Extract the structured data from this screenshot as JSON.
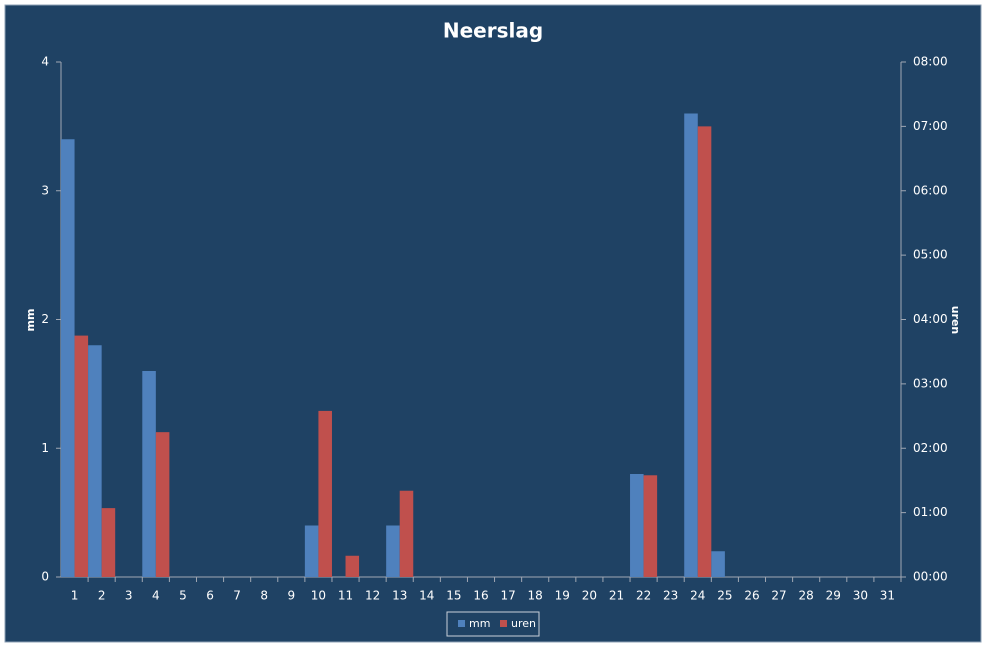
{
  "chart_data": {
    "type": "bar",
    "title": "Neerslag",
    "ylabel": "mm",
    "y2label": "uren",
    "categories": [
      "1",
      "2",
      "3",
      "4",
      "5",
      "6",
      "7",
      "8",
      "9",
      "10",
      "11",
      "12",
      "13",
      "14",
      "15",
      "16",
      "17",
      "18",
      "19",
      "20",
      "21",
      "22",
      "23",
      "24",
      "25",
      "26",
      "27",
      "28",
      "29",
      "30",
      "31"
    ],
    "series": [
      {
        "name": "mm",
        "color": "#4f81bd",
        "values": [
          3.4,
          1.8,
          0,
          1.6,
          0,
          0,
          0,
          0,
          0,
          0.4,
          0,
          0,
          0.4,
          0,
          0,
          0,
          0,
          0,
          0,
          0,
          0,
          0.8,
          0,
          3.6,
          0.2,
          0,
          0,
          0,
          0,
          0,
          0
        ]
      },
      {
        "name": "uren",
        "color": "#c0504d",
        "axis": "y2",
        "values": [
          3.75,
          1.07,
          0,
          2.25,
          0,
          0,
          0,
          0,
          0,
          2.58,
          0.33,
          0,
          1.34,
          0,
          0,
          0,
          0,
          0,
          0,
          0,
          0,
          1.58,
          0,
          7.0,
          0,
          0,
          0,
          0,
          0,
          0,
          0
        ]
      }
    ],
    "ylim": [
      0,
      4
    ],
    "yticks": [
      0,
      1,
      2,
      3,
      4
    ],
    "y2lim": [
      0,
      8
    ],
    "y2ticks": [
      {
        "value": 0,
        "label": "00:00"
      },
      {
        "value": 1,
        "label": "01:00"
      },
      {
        "value": 2,
        "label": "02:00"
      },
      {
        "value": 3,
        "label": "03:00"
      },
      {
        "value": 4,
        "label": "04:00"
      },
      {
        "value": 5,
        "label": "05:00"
      },
      {
        "value": 6,
        "label": "06:00"
      },
      {
        "value": 7,
        "label": "07:00"
      },
      {
        "value": 8,
        "label": "08:00"
      }
    ],
    "grid": false,
    "legend": "bottom"
  }
}
